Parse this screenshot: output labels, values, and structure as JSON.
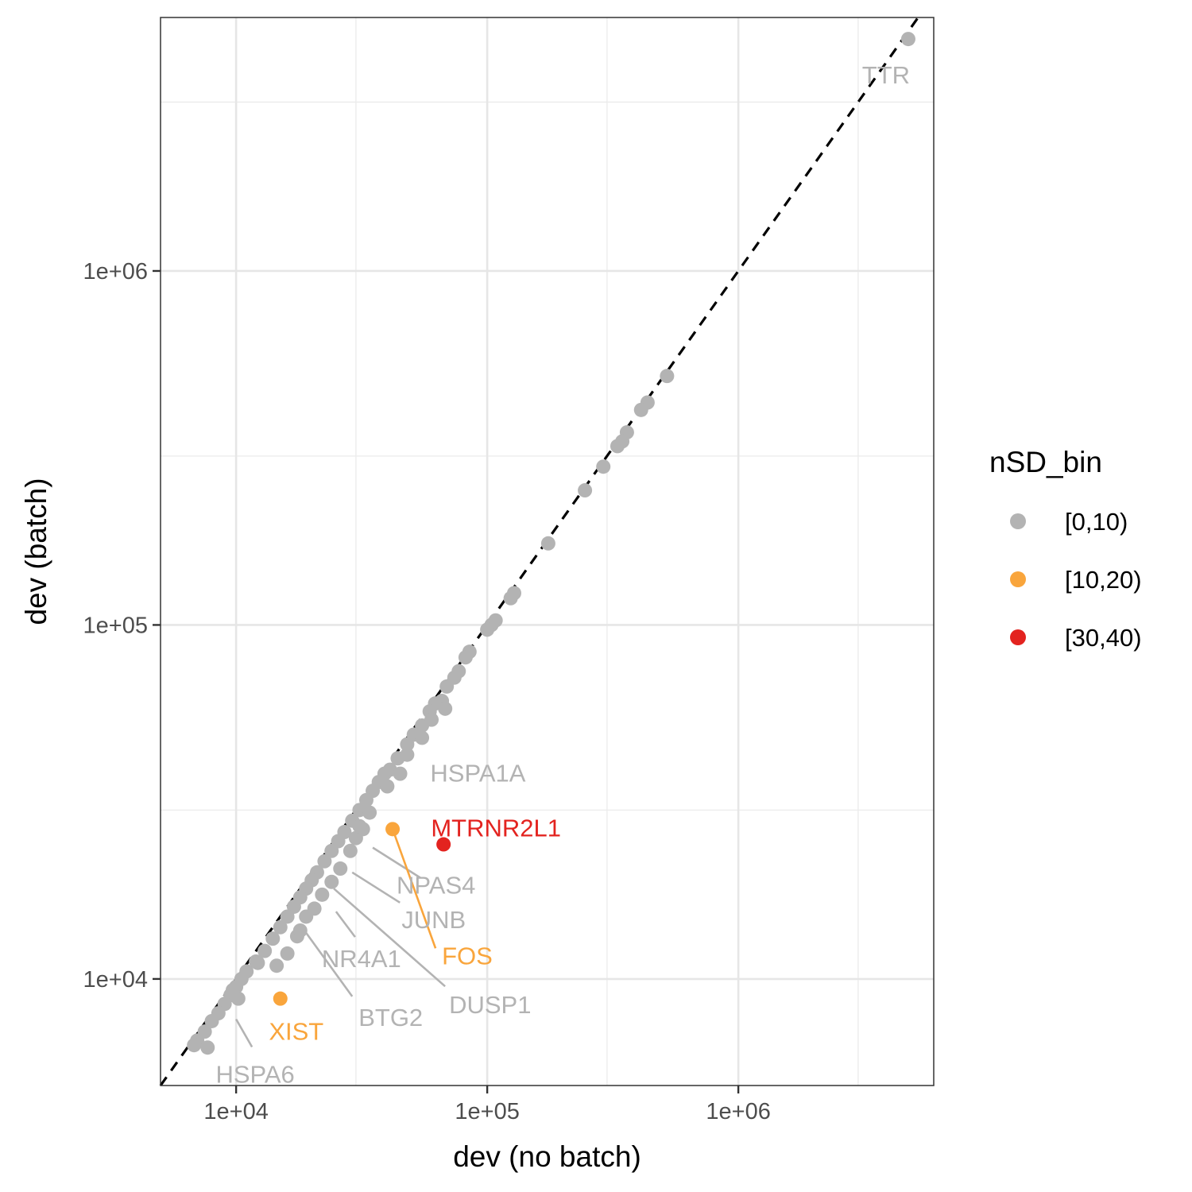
{
  "chart_data": {
    "type": "scatter",
    "xlabel": "dev (no batch)",
    "ylabel": "dev (batch)",
    "x_scale": "log10",
    "y_scale": "log10",
    "xlim": [
      5000,
      6000000
    ],
    "ylim": [
      5000,
      5200000
    ],
    "x_ticks": [
      10000,
      100000,
      1000000
    ],
    "x_tick_labels": [
      "1e+04",
      "1e+05",
      "1e+06"
    ],
    "y_ticks": [
      10000,
      100000,
      1000000
    ],
    "y_tick_labels": [
      "1e+04",
      "1e+05",
      "1e+06"
    ],
    "grid": true,
    "reference_line": {
      "type": "identity",
      "style": "dashed",
      "color": "#000000"
    },
    "legend": {
      "title": "nSD_bin",
      "placement": "right",
      "entries": [
        {
          "label": "[0,10)",
          "color": "#b3b3b3"
        },
        {
          "label": "[10,20)",
          "color": "#f9a53c"
        },
        {
          "label": "[30,40)",
          "color": "#e3231f"
        }
      ]
    },
    "series": [
      {
        "name": "[0,10)",
        "color": "#b3b3b3",
        "points": [
          [
            4750000,
            4520000
          ],
          [
            520000,
            505000
          ],
          [
            435000,
            425000
          ],
          [
            410000,
            405000
          ],
          [
            360000,
            350000
          ],
          [
            345000,
            330000
          ],
          [
            330000,
            320000
          ],
          [
            290000,
            280000
          ],
          [
            245000,
            240000
          ],
          [
            175000,
            170000
          ],
          [
            128000,
            123000
          ],
          [
            124000,
            119000
          ],
          [
            108000,
            103000
          ],
          [
            104000,
            100000
          ],
          [
            100000,
            97000
          ],
          [
            85000,
            84000
          ],
          [
            82000,
            81000
          ],
          [
            77000,
            74000
          ],
          [
            74000,
            71000
          ],
          [
            69000,
            67000
          ],
          [
            66000,
            61000
          ],
          [
            62000,
            60000
          ],
          [
            59000,
            57000
          ],
          [
            55000,
            52000
          ],
          [
            51000,
            49000
          ],
          [
            48000,
            46000
          ],
          [
            44000,
            42000
          ],
          [
            41000,
            39000
          ],
          [
            39000,
            38000
          ],
          [
            37000,
            36000
          ],
          [
            35000,
            34000
          ],
          [
            33000,
            32000
          ],
          [
            31000,
            30000
          ],
          [
            29000,
            28000
          ],
          [
            27000,
            26000
          ],
          [
            25500,
            24500
          ],
          [
            24000,
            23000
          ],
          [
            22500,
            21500
          ],
          [
            21000,
            20000
          ],
          [
            20000,
            19000
          ],
          [
            19000,
            18000
          ],
          [
            18000,
            17000
          ],
          [
            17000,
            16000
          ],
          [
            16000,
            15000
          ],
          [
            15000,
            14000
          ],
          [
            14000,
            13000
          ],
          [
            13000,
            12000
          ],
          [
            12000,
            11200
          ],
          [
            11000,
            10500
          ],
          [
            10500,
            10000
          ],
          [
            10000,
            9500
          ],
          [
            9500,
            9000
          ],
          [
            9000,
            8500
          ],
          [
            8500,
            8000
          ],
          [
            8000,
            7600
          ],
          [
            7500,
            7100
          ],
          [
            7000,
            6700
          ],
          [
            6800,
            6500
          ],
          [
            7700,
            6400
          ],
          [
            10200,
            8800
          ],
          [
            9700,
            9300
          ],
          [
            14500,
            10900
          ],
          [
            12200,
            11100
          ],
          [
            16000,
            11800
          ],
          [
            17500,
            13200
          ],
          [
            19000,
            15000
          ],
          [
            18000,
            13700
          ],
          [
            20500,
            15800
          ],
          [
            22000,
            17300
          ],
          [
            24000,
            18800
          ],
          [
            26000,
            20500
          ],
          [
            28500,
            23000
          ],
          [
            30000,
            25000
          ],
          [
            32000,
            26500
          ],
          [
            34000,
            29500
          ],
          [
            40000,
            35000
          ],
          [
            45000,
            38000
          ],
          [
            48000,
            43000
          ],
          [
            55000,
            48000
          ],
          [
            60000,
            54000
          ],
          [
            68000,
            58000
          ],
          [
            31000,
            27000
          ]
        ]
      },
      {
        "name": "[10,20)",
        "color": "#f9a53c",
        "points": [
          [
            42000,
            26500
          ],
          [
            15000,
            8800
          ]
        ]
      },
      {
        "name": "[30,40)",
        "color": "#e3231f",
        "points": [
          [
            67000,
            24000
          ]
        ]
      }
    ],
    "labeled_points": [
      {
        "label": "TTR",
        "x": 4750000,
        "y": 4520000,
        "color": "#b3b3b3"
      },
      {
        "label": "HSPA1A",
        "x": 52000,
        "y": 38000,
        "color": "#b3b3b3"
      },
      {
        "label": "MTRNR2L1",
        "x": 67000,
        "y": 24000,
        "color": "#e3231f"
      },
      {
        "label": "NPAS4",
        "x": 35000,
        "y": 23500,
        "color": "#b3b3b3"
      },
      {
        "label": "JUNB",
        "x": 29000,
        "y": 20000,
        "color": "#b3b3b3"
      },
      {
        "label": "FOS",
        "x": 42000,
        "y": 26500,
        "color": "#f9a53c"
      },
      {
        "label": "NR4A1",
        "x": 25000,
        "y": 15500,
        "color": "#b3b3b3"
      },
      {
        "label": "DUSP1",
        "x": 24500,
        "y": 18000,
        "color": "#b3b3b3"
      },
      {
        "label": "BTG2",
        "x": 19000,
        "y": 13500,
        "color": "#b3b3b3"
      },
      {
        "label": "XIST",
        "x": 15000,
        "y": 8800,
        "color": "#f9a53c"
      },
      {
        "label": "HSPA6",
        "x": 10000,
        "y": 7700,
        "color": "#b3b3b3"
      }
    ]
  }
}
